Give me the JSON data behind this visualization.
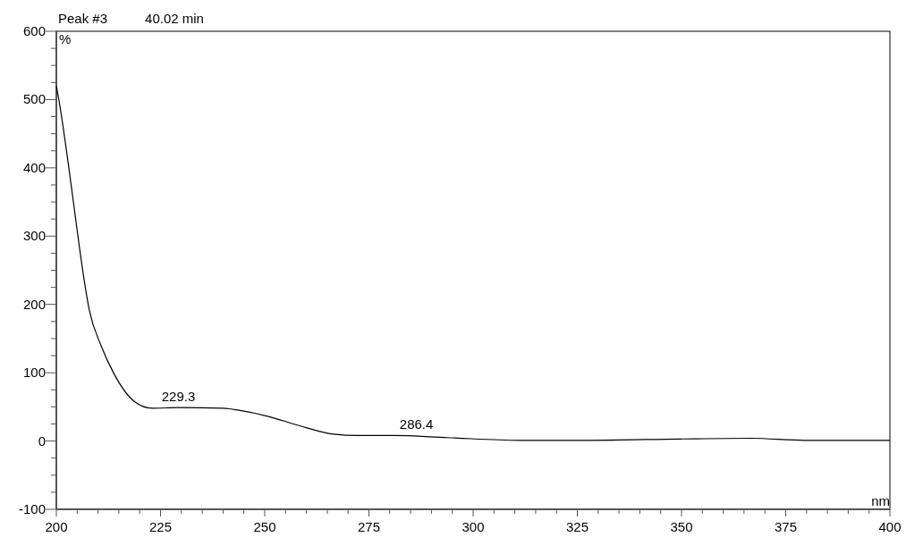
{
  "chart_data": {
    "type": "line",
    "title": "Peak #3",
    "subtitle": "40.02 min",
    "xlabel": "nm",
    "ylabel": "%",
    "x": [
      200,
      200.6,
      203,
      205.4,
      206.2,
      207.9,
      210.7,
      213.7,
      218.7,
      223,
      229.4,
      240,
      243.8,
      250.9,
      258,
      266.5,
      272.3,
      280.9,
      293.8,
      311,
      328,
      349.6,
      366.7,
      379.6,
      390,
      400
    ],
    "series": [
      {
        "color": "#000000",
        "values": [
          520,
          500,
          400,
          290,
          255,
          192,
          140,
          100,
          58,
          48,
          49,
          48,
          45,
          36,
          23,
          10,
          8,
          8,
          5,
          1,
          1,
          3,
          4,
          1,
          1,
          1
        ]
      }
    ],
    "xlim": [
      200,
      400
    ],
    "ylim": [
      -100,
      600
    ],
    "xticks": [
      200,
      {
        "value": 205,
        "label": null
      },
      {
        "value": 210,
        "label": null
      },
      {
        "value": 215,
        "label": null
      },
      {
        "value": 220,
        "label": null
      },
      225,
      {
        "value": 230,
        "label": null
      },
      {
        "value": 235,
        "label": null
      },
      {
        "value": 240,
        "label": null
      },
      {
        "value": 245,
        "label": null
      },
      250,
      {
        "value": 255,
        "label": null
      },
      {
        "value": 260,
        "label": null
      },
      {
        "value": 265,
        "label": null
      },
      {
        "value": 270,
        "label": null
      },
      275,
      {
        "value": 280,
        "label": null
      },
      {
        "value": 285,
        "label": null
      },
      {
        "value": 290,
        "label": null
      },
      {
        "value": 295,
        "label": null
      },
      300,
      {
        "value": 305,
        "label": null
      },
      {
        "value": 310,
        "label": null
      },
      {
        "value": 315,
        "label": null
      },
      {
        "value": 320,
        "label": null
      },
      325,
      {
        "value": 330,
        "label": null
      },
      {
        "value": 335,
        "label": null
      },
      {
        "value": 340,
        "label": null
      },
      {
        "value": 345,
        "label": null
      },
      350,
      {
        "value": 355,
        "label": null
      },
      {
        "value": 360,
        "label": null
      },
      {
        "value": 365,
        "label": null
      },
      {
        "value": 370,
        "label": null
      },
      375,
      {
        "value": 380,
        "label": null
      },
      {
        "value": 385,
        "label": null
      },
      {
        "value": 390,
        "label": null
      },
      {
        "value": 395,
        "label": null
      },
      400
    ],
    "yticks": [
      -100,
      {
        "value": -75,
        "label": null
      },
      {
        "value": -50,
        "label": null
      },
      {
        "value": -25,
        "label": null
      },
      0,
      {
        "value": 25,
        "label": null
      },
      {
        "value": 50,
        "label": null
      },
      {
        "value": 75,
        "label": null
      },
      100,
      {
        "value": 125,
        "label": null
      },
      {
        "value": 150,
        "label": null
      },
      {
        "value": 175,
        "label": null
      },
      200,
      {
        "value": 225,
        "label": null
      },
      {
        "value": 250,
        "label": null
      },
      {
        "value": 275,
        "label": null
      },
      300,
      {
        "value": 325,
        "label": null
      },
      {
        "value": 350,
        "label": null
      },
      {
        "value": 375,
        "label": null
      },
      400,
      {
        "value": 425,
        "label": null
      },
      {
        "value": 450,
        "label": null
      },
      {
        "value": 475,
        "label": null
      },
      500,
      {
        "value": 525,
        "label": null
      },
      {
        "value": 550,
        "label": null
      },
      {
        "value": 575,
        "label": null
      },
      600
    ],
    "annotations": [
      {
        "text": "229.3",
        "x": 229.3,
        "y": 49
      },
      {
        "text": "286.4",
        "x": 286.4,
        "y": 8
      }
    ]
  }
}
